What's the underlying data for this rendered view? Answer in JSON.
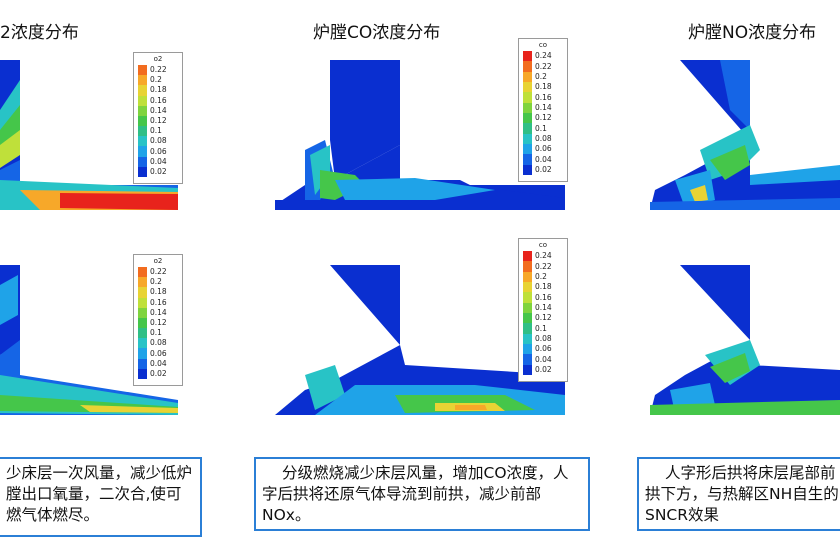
{
  "titles": {
    "o2": "2浓度分布",
    "co": "炉膛CO浓度分布",
    "no": "炉膛NO浓度分布"
  },
  "legends": {
    "o2": {
      "label": "o2",
      "ticks": [
        "0.22",
        "0.2",
        "0.18",
        "0.16",
        "0.14",
        "0.12",
        "0.1",
        "0.08",
        "0.06",
        "0.04",
        "0.02"
      ]
    },
    "co": {
      "label": "co",
      "ticks": [
        "0.24",
        "0.22",
        "0.2",
        "0.18",
        "0.16",
        "0.14",
        "0.12",
        "0.1",
        "0.08",
        "0.06",
        "0.04",
        "0.02"
      ]
    }
  },
  "colorscale": [
    "#e8231c",
    "#f26c1f",
    "#f7a829",
    "#e8d334",
    "#bfe03a",
    "#7fd43e",
    "#45c64a",
    "#2fbf86",
    "#28c3c6",
    "#1fa3e8",
    "#1565e6",
    "#0a2fd0"
  ],
  "notes": {
    "o2": "少床层一次风量，减少低炉膛出口氧量，二次合,使可燃气体燃尽。",
    "co": "分级燃烧减少床层风量，增加CO浓度，人字后拱将还原气体导流到前拱，减少前部NOx。",
    "no": "人字形后拱将床层尾部前拱下方，与热解区NH自生的SNCR效果"
  }
}
